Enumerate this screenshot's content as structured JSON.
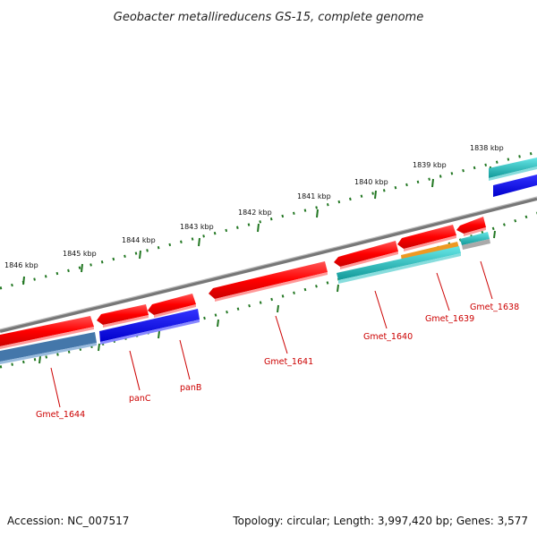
{
  "title": "Geobacter metallireducens GS-15, complete genome",
  "accession": "Accession: NC_007517",
  "summary": "Topology: circular; Length: 3,997,420 bp; Genes: 3,577",
  "colors": {
    "backbone": "#8a8a8a",
    "tick": "#227722",
    "forward_gene": "#ff0000",
    "reverse_gene_blue": "#0000ee",
    "steel_gene": "#4477aa",
    "cyan_gene": "#11bbbb",
    "orange_gene": "#ee9922",
    "label": "#cc0000"
  },
  "kbp_labels": [
    "1838 kbp",
    "1839 kbp",
    "1840 kbp",
    "1841 kbp",
    "1842 kbp",
    "1843 kbp",
    "1844 kbp",
    "1845 kbp",
    "1846 kbp"
  ],
  "genes": [
    {
      "name": "Gmet_1638"
    },
    {
      "name": "Gmet_1639"
    },
    {
      "name": "Gmet_1640"
    },
    {
      "name": "Gmet_1641"
    },
    {
      "name": "panB"
    },
    {
      "name": "panC"
    },
    {
      "name": "Gmet_1644"
    }
  ]
}
